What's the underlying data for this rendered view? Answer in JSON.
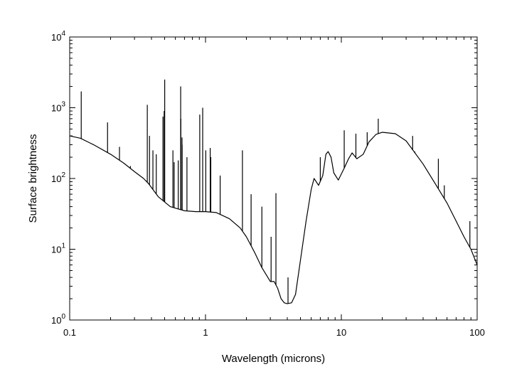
{
  "chart_data": {
    "type": "line",
    "xlabel": "Wavelength (microns)",
    "ylabel": "Surface brightness",
    "xscale": "log",
    "yscale": "log",
    "xlim": [
      0.1,
      100
    ],
    "ylim": [
      1,
      10000
    ],
    "grid": false,
    "line_color": "#000000",
    "x_ticks": [
      {
        "value": 0.1,
        "label": "0.1"
      },
      {
        "value": 1,
        "label": "1"
      },
      {
        "value": 10,
        "label": "10"
      },
      {
        "value": 100,
        "label": "100"
      }
    ],
    "y_ticks": [
      {
        "value": 1,
        "base": "10",
        "exp": "0"
      },
      {
        "value": 10,
        "base": "10",
        "exp": "1"
      },
      {
        "value": 100,
        "base": "10",
        "exp": "2"
      },
      {
        "value": 1000,
        "base": "10",
        "exp": "3"
      },
      {
        "value": 10000,
        "base": "10",
        "exp": "4"
      }
    ],
    "series": [
      {
        "continuum": [
          [
            0.1,
            400
          ],
          [
            0.12,
            370
          ],
          [
            0.15,
            300
          ],
          [
            0.2,
            220
          ],
          [
            0.25,
            165
          ],
          [
            0.3,
            125
          ],
          [
            0.35,
            100
          ],
          [
            0.38,
            85
          ],
          [
            0.45,
            55
          ],
          [
            0.55,
            40
          ],
          [
            0.7,
            35
          ],
          [
            0.85,
            34
          ],
          [
            1.0,
            34
          ],
          [
            1.2,
            33
          ],
          [
            1.5,
            27
          ],
          [
            1.8,
            20
          ],
          [
            2.0,
            15
          ],
          [
            2.3,
            9
          ],
          [
            2.6,
            5.5
          ],
          [
            3.0,
            3.5
          ],
          [
            3.2,
            3.5
          ],
          [
            3.4,
            2.8
          ],
          [
            3.6,
            2.0
          ],
          [
            3.8,
            1.75
          ],
          [
            4.0,
            1.7
          ],
          [
            4.3,
            1.75
          ],
          [
            4.6,
            2.3
          ],
          [
            5.0,
            7
          ],
          [
            5.5,
            25
          ],
          [
            6.0,
            70
          ],
          [
            6.3,
            100
          ],
          [
            6.8,
            80
          ],
          [
            7.3,
            110
          ],
          [
            7.7,
            220
          ],
          [
            8.0,
            240
          ],
          [
            8.4,
            200
          ],
          [
            8.8,
            120
          ],
          [
            9.5,
            95
          ],
          [
            10.5,
            140
          ],
          [
            11.3,
            190
          ],
          [
            12.0,
            230
          ],
          [
            13.0,
            190
          ],
          [
            14.5,
            220
          ],
          [
            16.0,
            330
          ],
          [
            18.0,
            420
          ],
          [
            20.0,
            450
          ],
          [
            25.0,
            430
          ],
          [
            30.0,
            340
          ],
          [
            40.0,
            160
          ],
          [
            50.0,
            80
          ],
          [
            60.0,
            45
          ],
          [
            70.0,
            25
          ],
          [
            80.0,
            15
          ],
          [
            90.0,
            10
          ],
          [
            100.0,
            6
          ]
        ],
        "emission_lines": [
          [
            0.1216,
            1700
          ],
          [
            0.19,
            620
          ],
          [
            0.2326,
            280
          ],
          [
            0.28,
            150
          ],
          [
            0.3727,
            1100
          ],
          [
            0.3869,
            400
          ],
          [
            0.41,
            250
          ],
          [
            0.434,
            220
          ],
          [
            0.4861,
            750
          ],
          [
            0.4959,
            900
          ],
          [
            0.5007,
            2500
          ],
          [
            0.5755,
            250
          ],
          [
            0.5876,
            170
          ],
          [
            0.63,
            180
          ],
          [
            0.6563,
            2000
          ],
          [
            0.6584,
            700
          ],
          [
            0.6716,
            380
          ],
          [
            0.6731,
            300
          ],
          [
            0.73,
            200
          ],
          [
            0.9069,
            800
          ],
          [
            0.9532,
            1000
          ],
          [
            1.0049,
            250
          ],
          [
            1.083,
            270
          ],
          [
            1.0938,
            200
          ],
          [
            1.2818,
            110
          ],
          [
            1.87,
            250
          ],
          [
            2.166,
            60
          ],
          [
            2.6,
            40
          ],
          [
            3.04,
            15
          ],
          [
            3.3,
            62
          ],
          [
            4.05,
            4.0
          ],
          [
            7.0,
            200
          ],
          [
            10.5,
            480
          ],
          [
            12.8,
            430
          ],
          [
            15.5,
            450
          ],
          [
            18.7,
            700
          ],
          [
            33.5,
            400
          ],
          [
            34.8,
            240
          ],
          [
            51.8,
            190
          ],
          [
            57.3,
            80
          ],
          [
            88.4,
            25
          ]
        ]
      }
    ]
  }
}
